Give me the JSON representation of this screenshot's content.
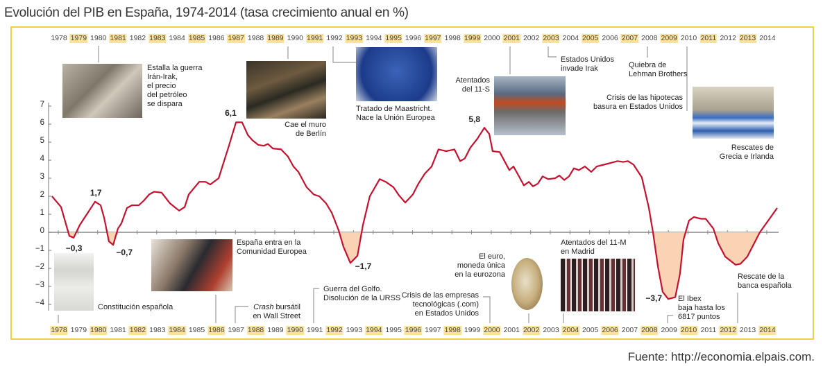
{
  "title": "Evolución del PIB en España, 1974-2014 (tasa crecimiento anual en %)",
  "source": "Fuente: http://economia.elpais.com.",
  "colors": {
    "line": "#c8102e",
    "negative_fill": "#f9d3b3",
    "highlight": "#fbe29a",
    "border": "#f2cf4a"
  },
  "chart_data": {
    "type": "line",
    "title": "Evolución del PIB en España, 1974-2014 (tasa crecimiento anual en %)",
    "xlabel": "",
    "ylabel": "%",
    "ylim": [
      -4,
      7
    ],
    "yticks": [
      "7",
      "6",
      "5",
      "4",
      "3",
      "2",
      "1",
      "0",
      "−1",
      "−2",
      "−3",
      "−4"
    ],
    "xticks_top": [
      "1978",
      "1979",
      "1980",
      "1981",
      "1982",
      "1983",
      "1984",
      "1985",
      "1986",
      "1987",
      "1988",
      "1989",
      "1990",
      "1991",
      "1992",
      "1993",
      "1994",
      "1995",
      "1996",
      "1997",
      "1998",
      "1999",
      "2000",
      "2001",
      "2002",
      "2003",
      "2004",
      "2005",
      "2006",
      "2007",
      "2008",
      "2009",
      "2010",
      "2011",
      "2012",
      "2013",
      "2014"
    ],
    "xticks_bottom": [
      "1978",
      "1979",
      "1980",
      "1981",
      "1982",
      "1983",
      "1984",
      "1985",
      "1986",
      "1987",
      "1988",
      "1989",
      "1990",
      "1991",
      "1992",
      "1993",
      "1994",
      "1995",
      "1996",
      "1997",
      "1998",
      "1999",
      "2000",
      "2001",
      "2002",
      "2003",
      "2004",
      "2005",
      "2006",
      "2007",
      "2008",
      "2009",
      "2010",
      "2011",
      "2012",
      "2013",
      "2014"
    ],
    "series": [
      {
        "name": "PIB",
        "x": [
          1977.68,
          1978.14,
          1978.56,
          1978.78,
          1979.09,
          1979.87,
          1980.15,
          1980.33,
          1980.57,
          1980.79,
          1981.03,
          1981.21,
          1981.49,
          1981.74,
          1982.09,
          1982.34,
          1982.62,
          1982.87,
          1983.25,
          1983.68,
          1984.14,
          1984.42,
          1984.63,
          1985.16,
          1985.48,
          1985.72,
          1986.15,
          1986.67,
          1987.03,
          1987.34,
          1987.63,
          1987.87,
          1988.16,
          1988.44,
          1988.65,
          1988.9,
          1989.32,
          1989.67,
          1989.95,
          1990.2,
          1990.62,
          1990.98,
          1991.26,
          1991.61,
          1991.89,
          1992.25,
          1992.49,
          1992.84,
          1993.2,
          1993.48,
          1993.83,
          1994.33,
          1994.64,
          1995.03,
          1995.31,
          1995.63,
          1996.02,
          1996.3,
          1996.62,
          1996.97,
          1997.32,
          1997.71,
          1998.13,
          1998.42,
          1998.66,
          1998.94,
          1999.3,
          1999.65,
          1999.9,
          2000.07,
          2000.43,
          2000.92,
          2001.13,
          2001.41,
          2001.66,
          2001.91,
          2002.12,
          2002.37,
          2002.61,
          2002.89,
          2003.25,
          2003.46,
          2003.71,
          2003.95,
          2004.2,
          2004.45,
          2004.76,
          2005.08,
          2005.36,
          2005.72,
          2006.07,
          2006.42,
          2006.7,
          2006.95,
          2007.23,
          2007.65,
          2008.01,
          2008.22,
          2008.47,
          2008.71,
          2008.99,
          2009.35,
          2009.59,
          2009.77,
          2010.05,
          2010.3,
          2010.65,
          2010.9,
          2011.29,
          2011.53,
          2011.89,
          2012.41,
          2012.66,
          2013.01,
          2013.65,
          2014.53
        ],
        "y": [
          2.0,
          1.4,
          -0.2,
          -0.3,
          0.4,
          1.7,
          1.5,
          0.8,
          -0.5,
          -0.7,
          0.2,
          0.5,
          1.35,
          1.5,
          1.5,
          1.75,
          2.1,
          2.25,
          2.2,
          1.6,
          1.2,
          1.4,
          2.1,
          2.8,
          2.8,
          2.65,
          3.0,
          4.8,
          6.1,
          6.1,
          5.4,
          5.1,
          4.85,
          4.8,
          4.9,
          4.65,
          4.6,
          4.2,
          3.65,
          3.35,
          2.5,
          2.1,
          2.0,
          1.6,
          1.1,
          0.1,
          -0.8,
          -1.7,
          -1.3,
          0.4,
          2.0,
          2.95,
          2.8,
          2.5,
          2.05,
          1.65,
          2.1,
          2.7,
          3.25,
          3.65,
          4.6,
          4.5,
          4.6,
          3.95,
          4.1,
          4.7,
          5.2,
          5.8,
          5.45,
          4.5,
          4.45,
          3.45,
          3.65,
          3.1,
          2.6,
          2.8,
          2.55,
          2.7,
          3.1,
          2.95,
          3.0,
          3.15,
          2.9,
          3.1,
          3.55,
          3.45,
          3.65,
          3.35,
          3.65,
          3.75,
          3.85,
          3.95,
          3.9,
          3.95,
          3.75,
          3.05,
          1.35,
          0,
          -1.9,
          -3.3,
          -3.7,
          -3.6,
          -2.3,
          -0.4,
          0.65,
          0.85,
          0.75,
          0.75,
          0.2,
          -0.6,
          -1.35,
          -1.8,
          -1.75,
          -1.35,
          0,
          1.35
        ]
      }
    ],
    "data_labels": [
      {
        "x": 1987.1,
        "y": 6.1,
        "text": "6,1"
      },
      {
        "x": 1979.9,
        "y": 1.7,
        "text": "1,7"
      },
      {
        "x": 1978.8,
        "y": -0.3,
        "text": "−0,3"
      },
      {
        "x": 1980.8,
        "y": -0.7,
        "text": "−0,7"
      },
      {
        "x": 1992.9,
        "y": -1.7,
        "text": "−1,7"
      },
      {
        "x": 1999.7,
        "y": 5.8,
        "text": "5,8"
      },
      {
        "x": 2008.9,
        "y": -3.7,
        "text": "−3,7"
      }
    ],
    "annotations": {
      "iran_irak": "Estalla la guerra\nIrán-Irak,\nel precio\ndel petróleo\nse dispara",
      "berlin": "Cae el muro\nde Berlín",
      "maastricht": "Tratado de Maastricht.\nNace la Unión Europea",
      "atentados_11s": "Atentados\ndel 11-S",
      "irak": "Estados Unidos\ninvade Irak",
      "lehman": "Quiebra de\nLehman Brothers",
      "hipotecas": "Crisis de las hipotecas\nbasura en Estados Unidos",
      "grecia": "Rescates de\nGrecia e Irlanda",
      "constitucion": "Constitución española",
      "cee": "España entra en la\nComunidad Europea",
      "crash_word": "Crash",
      "crash_rest": " bursátil\nen Wall Street",
      "golfo": "Guerra del Golfo.\nDisolución de la URSS",
      "puntocom": "Crisis de las empresas\ntecnológicas (.com)\nen Estados Unidos",
      "euro": "El euro,\nmoneda única\nen la eurozona",
      "atentados_11m": "Atentados del 11-M\nen Madrid",
      "ibex": "El Ibex\nbaja hasta los\n6817 puntos",
      "banca": "Rescate de la\nbanca española"
    }
  }
}
